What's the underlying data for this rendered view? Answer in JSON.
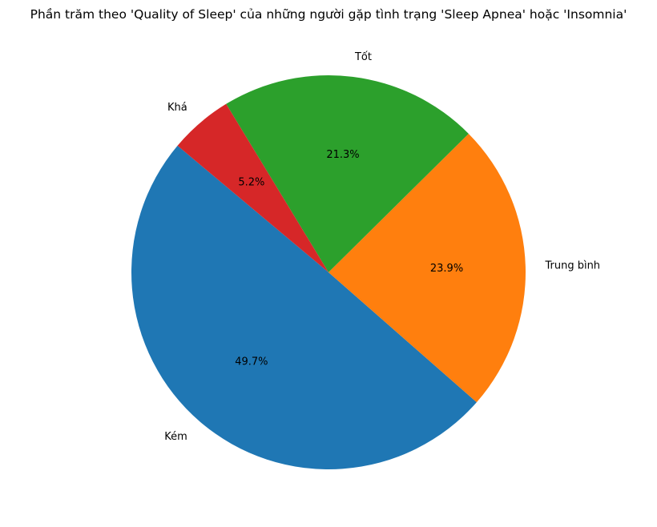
{
  "chart_data": {
    "type": "pie",
    "title": "Phần trăm theo 'Quality of Sleep' của những người gặp tình trạng 'Sleep Apnea' hoặc 'Insomnia'",
    "categories": [
      "Kém",
      "Trung bình",
      "Tốt",
      "Khá"
    ],
    "values": [
      49.7,
      23.9,
      21.3,
      5.2
    ],
    "value_labels": [
      "49.7%",
      "23.9%",
      "21.3%",
      "5.2%"
    ],
    "colors": [
      "#1f77b4",
      "#ff7f0e",
      "#2ca02c",
      "#d62728"
    ],
    "start_angle_deg": 140,
    "direction": "counterclockwise",
    "legend": "none"
  }
}
